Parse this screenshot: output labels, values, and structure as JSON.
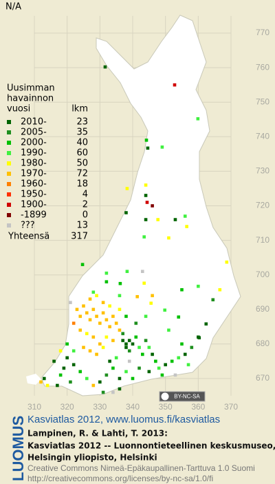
{
  "header": {
    "title": "N/A"
  },
  "legend": {
    "title_lines": [
      "Uusimman",
      "havainnon"
    ],
    "year_header": "vuosi",
    "count_header": "lkm",
    "rows": [
      {
        "label": "2010-",
        "count": 23,
        "color": "#006400"
      },
      {
        "label": "2005-",
        "count": 35,
        "color": "#1f8f1f"
      },
      {
        "label": "2000-",
        "count": 40,
        "color": "#00c000"
      },
      {
        "label": "1990-",
        "count": 60,
        "color": "#40f040"
      },
      {
        "label": "1980-",
        "count": 50,
        "color": "#ffff00"
      },
      {
        "label": "1970-",
        "count": 72,
        "color": "#ffc000"
      },
      {
        "label": "1960-",
        "count": 18,
        "color": "#ff8000"
      },
      {
        "label": "1950-",
        "count": 4,
        "color": "#ff3000"
      },
      {
        "label": "1900-",
        "count": 2,
        "color": "#d00000"
      },
      {
        "label": "-1899",
        "count": 0,
        "color": "#800000"
      },
      {
        "label": "???",
        "count": 13,
        "color": "#c4c4c4"
      }
    ],
    "total": {
      "label": "Yhteensä",
      "count": 317
    }
  },
  "map": {
    "xlim": [
      310,
      370
    ],
    "ylim": [
      665,
      775
    ],
    "xticks": [
      310,
      320,
      330,
      340,
      350,
      360,
      370
    ],
    "yticks": [
      670,
      680,
      690,
      700,
      710,
      720,
      730,
      740,
      750,
      760,
      770
    ],
    "points": [
      [
        331.6,
        760.2,
        0
      ],
      [
        352.8,
        755,
        8
      ],
      [
        359.9,
        745.2,
        3
      ],
      [
        344.2,
        739,
        2
      ],
      [
        344.6,
        736.7,
        0
      ],
      [
        349,
        737,
        3
      ],
      [
        344,
        726,
        4
      ],
      [
        344,
        723,
        0
      ],
      [
        344.4,
        721,
        8
      ],
      [
        346,
        720,
        9
      ],
      [
        338.3,
        725,
        4
      ],
      [
        347.7,
        716,
        4
      ],
      [
        353,
        716,
        0
      ],
      [
        356,
        717,
        3
      ],
      [
        356.5,
        714,
        4
      ],
      [
        338,
        718,
        0
      ],
      [
        343.5,
        711,
        3
      ],
      [
        344,
        716,
        0
      ],
      [
        368.7,
        703.7,
        4
      ],
      [
        351,
        710.7,
        4
      ],
      [
        324.7,
        703,
        2
      ],
      [
        338.3,
        701,
        3
      ],
      [
        332,
        700.5,
        3
      ],
      [
        336.2,
        697.5,
        2
      ],
      [
        343.5,
        697.6,
        4
      ],
      [
        341.4,
        693.7,
        5
      ],
      [
        345.6,
        691.8,
        4
      ],
      [
        355,
        695.7,
        2
      ],
      [
        360,
        696.7,
        3
      ],
      [
        366.6,
        695.7,
        4
      ],
      [
        364.5,
        692.8,
        1
      ],
      [
        362.4,
        685.8,
        0
      ],
      [
        349.8,
        689.8,
        3
      ],
      [
        354,
        687.8,
        2
      ],
      [
        360.3,
        681.8,
        0
      ],
      [
        323,
        690,
        5
      ],
      [
        324,
        688,
        5
      ],
      [
        325,
        691,
        5
      ],
      [
        326,
        689,
        5
      ],
      [
        327,
        687,
        5
      ],
      [
        328,
        690,
        5
      ],
      [
        329,
        688,
        5
      ],
      [
        330,
        686,
        5
      ],
      [
        331,
        689,
        5
      ],
      [
        332,
        687,
        5
      ],
      [
        333,
        685,
        5
      ],
      [
        334,
        688,
        5
      ],
      [
        335,
        686,
        5
      ],
      [
        336,
        684,
        5
      ],
      [
        324,
        684,
        5
      ],
      [
        326,
        683,
        4
      ],
      [
        328,
        682,
        5
      ],
      [
        330,
        680,
        5
      ],
      [
        332,
        682,
        4
      ],
      [
        334,
        681,
        5
      ],
      [
        322,
        686,
        6
      ],
      [
        325,
        679,
        5
      ],
      [
        327,
        678,
        5
      ],
      [
        329,
        677,
        5
      ],
      [
        331,
        679,
        4
      ],
      [
        333,
        691,
        4
      ],
      [
        336,
        690,
        4
      ],
      [
        327,
        693,
        5
      ],
      [
        329,
        694,
        4
      ],
      [
        331,
        692,
        5
      ],
      [
        337,
        681,
        0
      ],
      [
        338,
        680,
        0
      ],
      [
        339,
        681,
        0
      ],
      [
        338,
        679,
        0
      ],
      [
        340,
        680,
        0
      ],
      [
        339,
        678,
        1
      ],
      [
        337,
        683,
        1
      ],
      [
        341,
        682,
        2
      ],
      [
        342,
        679,
        3
      ],
      [
        343,
        677,
        2
      ],
      [
        344,
        681,
        1
      ],
      [
        345,
        679,
        3
      ],
      [
        346,
        677,
        0
      ],
      [
        347,
        675,
        2
      ],
      [
        348,
        673,
        3
      ],
      [
        350,
        674,
        0
      ],
      [
        352,
        675,
        2
      ],
      [
        354,
        676,
        3
      ],
      [
        356,
        677,
        0
      ],
      [
        358,
        679,
        1
      ],
      [
        360,
        682,
        0
      ],
      [
        357,
        674,
        3
      ],
      [
        349,
        671,
        2
      ],
      [
        345,
        672,
        0
      ],
      [
        342,
        673,
        1
      ],
      [
        340,
        670,
        2
      ],
      [
        338,
        672,
        3
      ],
      [
        336,
        670,
        0
      ],
      [
        334,
        673,
        2
      ],
      [
        332,
        671,
        1
      ],
      [
        330,
        669,
        0
      ],
      [
        328,
        668,
        5
      ],
      [
        326,
        670,
        3
      ],
      [
        324,
        672,
        2
      ],
      [
        322,
        674,
        0
      ],
      [
        320,
        676,
        0
      ],
      [
        319,
        673,
        0
      ],
      [
        318,
        671,
        2
      ],
      [
        321,
        669,
        1
      ],
      [
        317,
        668,
        0
      ],
      [
        312,
        669,
        5
      ],
      [
        313,
        670,
        0
      ],
      [
        314,
        668,
        4
      ],
      [
        316,
        675,
        0
      ],
      [
        318,
        678,
        4
      ],
      [
        320,
        680,
        2
      ],
      [
        322,
        678,
        3
      ],
      [
        335,
        676,
        3
      ],
      [
        333,
        675,
        0
      ],
      [
        336,
        667,
        0
      ],
      [
        334,
        666,
        10
      ],
      [
        331,
        666,
        1
      ],
      [
        339,
        675,
        10
      ],
      [
        321,
        692,
        10
      ],
      [
        343,
        701,
        10
      ],
      [
        353,
        671,
        10
      ],
      [
        332,
        698,
        2
      ],
      [
        328,
        695,
        3
      ],
      [
        346,
        694,
        5
      ],
      [
        351,
        684,
        3
      ],
      [
        355,
        680,
        2
      ],
      [
        341,
        686,
        1
      ],
      [
        344,
        688,
        3
      ],
      [
        338,
        688,
        2
      ],
      [
        336,
        694,
        3
      ]
    ]
  },
  "cc_badge": "BY-NC-SA",
  "footer": {
    "brand": "LUOMUS",
    "link": "Kasviatlas 2012, www.luomus.fi/kasviatlas",
    "citation": [
      "Lampinen, R. & Lahti, T. 2013:",
      "Kasviatlas 2012 -- Luonnontieteellinen keskusmuseo,",
      "Helsingin yliopisto, Helsinki"
    ],
    "license": [
      "Creative Commons Nimeä-Epäkaupallinen-Tarttuva 1.0 Suomi",
      "http://creativecommons.org/licenses/by-nc-sa/1.0/fi"
    ]
  }
}
